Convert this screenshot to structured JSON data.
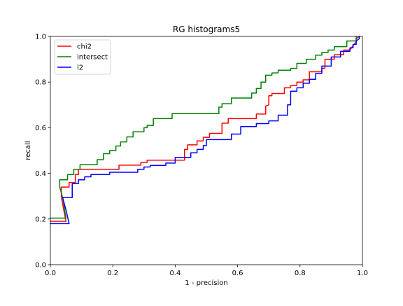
{
  "chart_data": {
    "type": "line",
    "title": "RG histograms5",
    "xlabel": "1 - precision",
    "ylabel": "recall",
    "xlim": [
      0.0,
      1.0
    ],
    "ylim": [
      0.0,
      1.0
    ],
    "xticks": [
      "0.0",
      "0.2",
      "0.4",
      "0.6",
      "0.8",
      "1.0"
    ],
    "yticks": [
      "0.0",
      "0.2",
      "0.4",
      "0.6",
      "0.8",
      "1.0"
    ],
    "grid": false,
    "legend_position": "top-left",
    "series": [
      {
        "name": "chi2",
        "color": "#ff0000",
        "points": [
          [
            0.0,
            0.19
          ],
          [
            0.05,
            0.19
          ],
          [
            0.04,
            0.26
          ],
          [
            0.035,
            0.3
          ],
          [
            0.035,
            0.34
          ],
          [
            0.06,
            0.34
          ],
          [
            0.06,
            0.36
          ],
          [
            0.08,
            0.36
          ],
          [
            0.08,
            0.395
          ],
          [
            0.09,
            0.395
          ],
          [
            0.09,
            0.418
          ],
          [
            0.22,
            0.418
          ],
          [
            0.22,
            0.436
          ],
          [
            0.29,
            0.436
          ],
          [
            0.29,
            0.448
          ],
          [
            0.31,
            0.448
          ],
          [
            0.31,
            0.458
          ],
          [
            0.43,
            0.458
          ],
          [
            0.43,
            0.505
          ],
          [
            0.44,
            0.505
          ],
          [
            0.44,
            0.525
          ],
          [
            0.47,
            0.525
          ],
          [
            0.47,
            0.542
          ],
          [
            0.49,
            0.542
          ],
          [
            0.49,
            0.558
          ],
          [
            0.51,
            0.558
          ],
          [
            0.51,
            0.575
          ],
          [
            0.55,
            0.575
          ],
          [
            0.55,
            0.62
          ],
          [
            0.57,
            0.62
          ],
          [
            0.57,
            0.64
          ],
          [
            0.66,
            0.64
          ],
          [
            0.66,
            0.66
          ],
          [
            0.69,
            0.66
          ],
          [
            0.69,
            0.695
          ],
          [
            0.7,
            0.7
          ],
          [
            0.7,
            0.74
          ],
          [
            0.71,
            0.74
          ],
          [
            0.71,
            0.75
          ],
          [
            0.75,
            0.75
          ],
          [
            0.75,
            0.775
          ],
          [
            0.77,
            0.775
          ],
          [
            0.77,
            0.785
          ],
          [
            0.79,
            0.785
          ],
          [
            0.79,
            0.8
          ],
          [
            0.81,
            0.8
          ],
          [
            0.81,
            0.81
          ],
          [
            0.83,
            0.81
          ],
          [
            0.83,
            0.845
          ],
          [
            0.87,
            0.845
          ],
          [
            0.87,
            0.86
          ],
          [
            0.88,
            0.86
          ],
          [
            0.88,
            0.9
          ],
          [
            0.91,
            0.9
          ],
          [
            0.91,
            0.92
          ],
          [
            0.94,
            0.92
          ],
          [
            0.94,
            0.94
          ],
          [
            0.96,
            0.94
          ],
          [
            0.97,
            0.96
          ],
          [
            0.98,
            0.975
          ],
          [
            0.98,
            0.99
          ],
          [
            0.99,
            1.0
          ]
        ]
      },
      {
        "name": "intersect",
        "color": "#008000",
        "points": [
          [
            0.0,
            0.204
          ],
          [
            0.05,
            0.204
          ],
          [
            0.04,
            0.29
          ],
          [
            0.03,
            0.34
          ],
          [
            0.03,
            0.372
          ],
          [
            0.055,
            0.372
          ],
          [
            0.055,
            0.395
          ],
          [
            0.075,
            0.395
          ],
          [
            0.075,
            0.418
          ],
          [
            0.095,
            0.418
          ],
          [
            0.095,
            0.438
          ],
          [
            0.15,
            0.438
          ],
          [
            0.15,
            0.46
          ],
          [
            0.17,
            0.46
          ],
          [
            0.17,
            0.486
          ],
          [
            0.19,
            0.486
          ],
          [
            0.19,
            0.5
          ],
          [
            0.21,
            0.5
          ],
          [
            0.21,
            0.52
          ],
          [
            0.225,
            0.52
          ],
          [
            0.225,
            0.538
          ],
          [
            0.245,
            0.538
          ],
          [
            0.245,
            0.56
          ],
          [
            0.265,
            0.56
          ],
          [
            0.265,
            0.582
          ],
          [
            0.3,
            0.582
          ],
          [
            0.3,
            0.6
          ],
          [
            0.31,
            0.6
          ],
          [
            0.31,
            0.61
          ],
          [
            0.33,
            0.61
          ],
          [
            0.33,
            0.64
          ],
          [
            0.39,
            0.64
          ],
          [
            0.39,
            0.662
          ],
          [
            0.54,
            0.662
          ],
          [
            0.54,
            0.69
          ],
          [
            0.55,
            0.69
          ],
          [
            0.55,
            0.705
          ],
          [
            0.58,
            0.705
          ],
          [
            0.58,
            0.73
          ],
          [
            0.645,
            0.73
          ],
          [
            0.645,
            0.752
          ],
          [
            0.66,
            0.752
          ],
          [
            0.66,
            0.772
          ],
          [
            0.675,
            0.772
          ],
          [
            0.675,
            0.8
          ],
          [
            0.69,
            0.8
          ],
          [
            0.69,
            0.83
          ],
          [
            0.71,
            0.83
          ],
          [
            0.71,
            0.84
          ],
          [
            0.73,
            0.84
          ],
          [
            0.73,
            0.852
          ],
          [
            0.77,
            0.852
          ],
          [
            0.77,
            0.86
          ],
          [
            0.79,
            0.86
          ],
          [
            0.79,
            0.882
          ],
          [
            0.82,
            0.882
          ],
          [
            0.82,
            0.9
          ],
          [
            0.85,
            0.9
          ],
          [
            0.85,
            0.918
          ],
          [
            0.87,
            0.918
          ],
          [
            0.87,
            0.93
          ],
          [
            0.89,
            0.93
          ],
          [
            0.89,
            0.94
          ],
          [
            0.91,
            0.94
          ],
          [
            0.91,
            0.955
          ],
          [
            0.95,
            0.955
          ],
          [
            0.95,
            0.98
          ],
          [
            0.98,
            0.98
          ],
          [
            0.98,
            1.0
          ]
        ]
      },
      {
        "name": "l2",
        "color": "#0000ff",
        "points": [
          [
            0.0,
            0.18
          ],
          [
            0.06,
            0.18
          ],
          [
            0.05,
            0.24
          ],
          [
            0.04,
            0.29
          ],
          [
            0.04,
            0.294
          ],
          [
            0.07,
            0.294
          ],
          [
            0.07,
            0.355
          ],
          [
            0.09,
            0.355
          ],
          [
            0.09,
            0.372
          ],
          [
            0.11,
            0.372
          ],
          [
            0.11,
            0.385
          ],
          [
            0.13,
            0.385
          ],
          [
            0.13,
            0.395
          ],
          [
            0.19,
            0.395
          ],
          [
            0.19,
            0.405
          ],
          [
            0.28,
            0.405
          ],
          [
            0.28,
            0.418
          ],
          [
            0.3,
            0.418
          ],
          [
            0.3,
            0.428
          ],
          [
            0.32,
            0.428
          ],
          [
            0.32,
            0.435
          ],
          [
            0.37,
            0.435
          ],
          [
            0.37,
            0.445
          ],
          [
            0.4,
            0.445
          ],
          [
            0.4,
            0.47
          ],
          [
            0.45,
            0.47
          ],
          [
            0.45,
            0.49
          ],
          [
            0.47,
            0.49
          ],
          [
            0.47,
            0.505
          ],
          [
            0.49,
            0.505
          ],
          [
            0.49,
            0.522
          ],
          [
            0.5,
            0.522
          ],
          [
            0.5,
            0.548
          ],
          [
            0.58,
            0.548
          ],
          [
            0.58,
            0.572
          ],
          [
            0.61,
            0.572
          ],
          [
            0.61,
            0.605
          ],
          [
            0.66,
            0.605
          ],
          [
            0.66,
            0.618
          ],
          [
            0.7,
            0.618
          ],
          [
            0.7,
            0.63
          ],
          [
            0.73,
            0.63
          ],
          [
            0.73,
            0.655
          ],
          [
            0.76,
            0.655
          ],
          [
            0.76,
            0.7
          ],
          [
            0.77,
            0.7
          ],
          [
            0.77,
            0.76
          ],
          [
            0.79,
            0.76
          ],
          [
            0.79,
            0.775
          ],
          [
            0.81,
            0.775
          ],
          [
            0.81,
            0.795
          ],
          [
            0.83,
            0.795
          ],
          [
            0.83,
            0.812
          ],
          [
            0.85,
            0.812
          ],
          [
            0.85,
            0.838
          ],
          [
            0.87,
            0.838
          ],
          [
            0.87,
            0.87
          ],
          [
            0.9,
            0.87
          ],
          [
            0.9,
            0.91
          ],
          [
            0.93,
            0.91
          ],
          [
            0.93,
            0.935
          ],
          [
            0.96,
            0.935
          ],
          [
            0.96,
            0.95
          ],
          [
            0.97,
            0.95
          ],
          [
            0.97,
            0.965
          ],
          [
            0.98,
            0.965
          ],
          [
            0.98,
            0.98
          ],
          [
            0.99,
            0.99
          ],
          [
            0.99,
            1.0
          ]
        ]
      }
    ]
  }
}
